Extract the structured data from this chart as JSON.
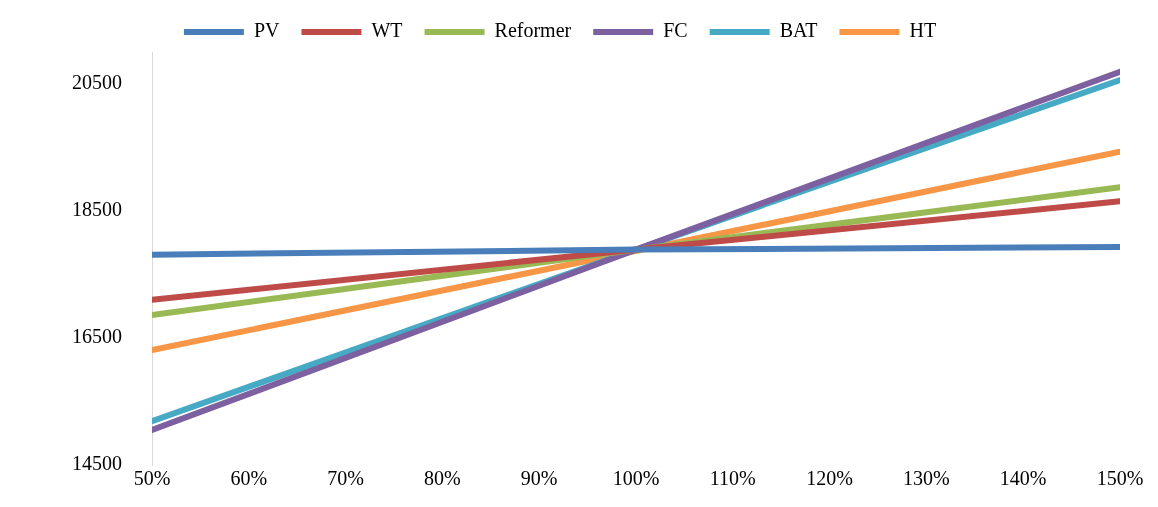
{
  "chart_data": {
    "type": "line",
    "x": [
      50,
      100,
      150
    ],
    "xlim": [
      50,
      150
    ],
    "xticks": [
      {
        "value": 50,
        "label": "50%"
      },
      {
        "value": 60,
        "label": "60%"
      },
      {
        "value": 70,
        "label": "70%"
      },
      {
        "value": 80,
        "label": "80%"
      },
      {
        "value": 90,
        "label": "90%"
      },
      {
        "value": 100,
        "label": "100%"
      },
      {
        "value": 110,
        "label": "110%"
      },
      {
        "value": 120,
        "label": "120%"
      },
      {
        "value": 130,
        "label": "130%"
      },
      {
        "value": 140,
        "label": "140%"
      },
      {
        "value": 150,
        "label": "150%"
      }
    ],
    "ylim": [
      14500,
      21000
    ],
    "yticks": [
      14500,
      16500,
      18500,
      20500
    ],
    "grid": false,
    "legend": "top",
    "marker": "none",
    "line_style": "solid",
    "series": [
      {
        "name": "PV",
        "color": "#4a7ebb",
        "values": [
          17810,
          17890,
          17930
        ]
      },
      {
        "name": "WT",
        "color": "#be4b48",
        "values": [
          17100,
          17890,
          18650
        ]
      },
      {
        "name": "Reformer",
        "color": "#98b954",
        "values": [
          16860,
          17890,
          18870
        ]
      },
      {
        "name": "FC",
        "color": "#7d60a0",
        "values": [
          15050,
          17890,
          20690
        ]
      },
      {
        "name": "BAT",
        "color": "#46aac5",
        "values": [
          15190,
          17890,
          20560
        ]
      },
      {
        "name": "HT",
        "color": "#f79646",
        "x": [
          50,
          150
        ],
        "values": [
          16310,
          19430
        ]
      }
    ]
  }
}
